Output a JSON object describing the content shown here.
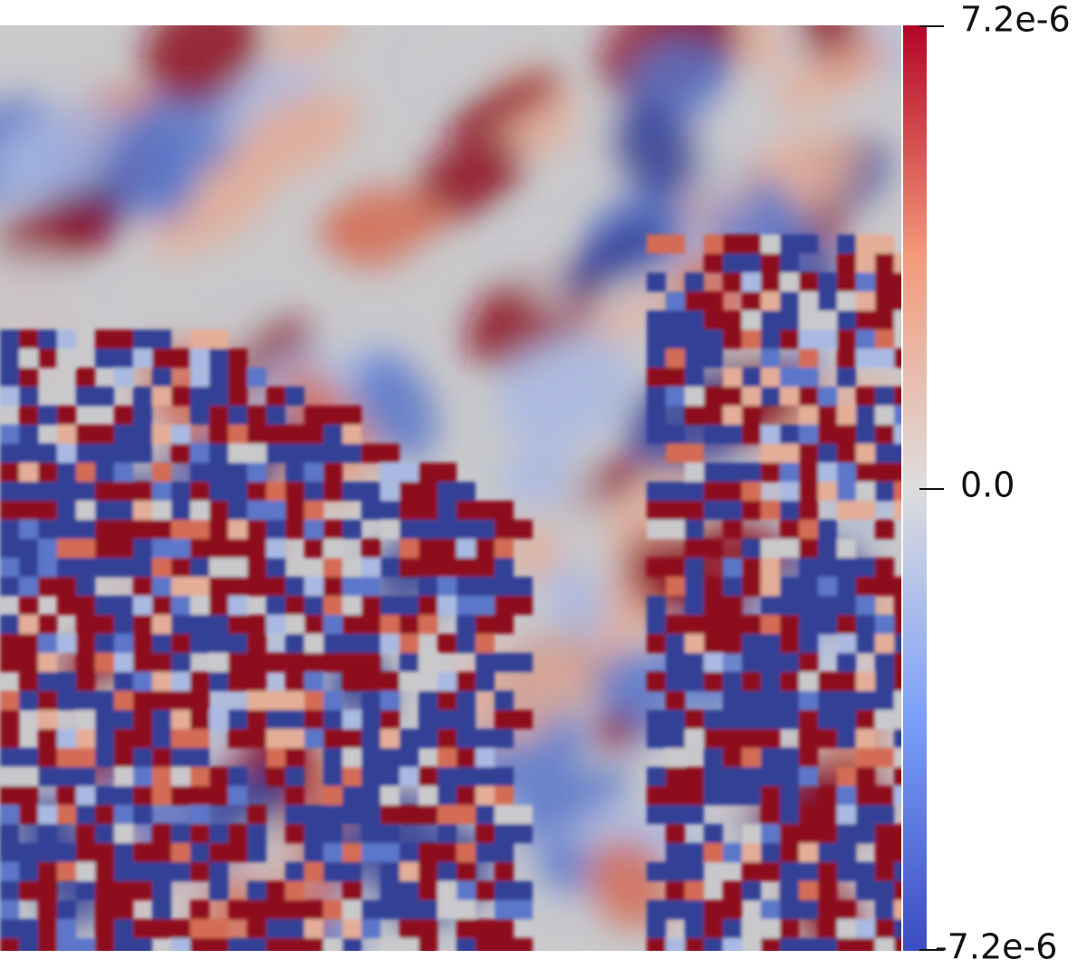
{
  "colorbar": {
    "tick_labels": [
      "7.2e-6",
      "0.0",
      "-7.2e-6"
    ]
  }
}
